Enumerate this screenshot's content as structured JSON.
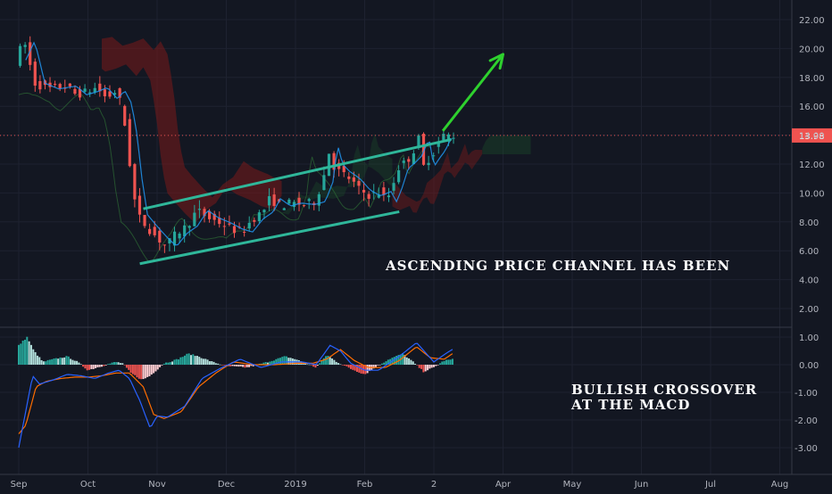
{
  "colors": {
    "background": "#131722",
    "up": "#26a69a",
    "down": "#ef5350",
    "channel": "#2fb79a",
    "arrow": "#2ed12e",
    "macd": "#2962ff",
    "signal": "#ff6d00",
    "price_line": "#ef5350",
    "cloud_bear": "#7a1a1a",
    "cloud_bull": "#1c4d2a"
  },
  "chart_data": [
    {
      "type": "candlestick",
      "title": "",
      "x_labels": [
        "Sep",
        "Oct",
        "Nov",
        "Dec",
        "2019",
        "Feb",
        "2",
        "Apr",
        "May",
        "Jun",
        "Jul",
        "Aug"
      ],
      "y_ticks": [
        "22.00",
        "20.00",
        "18.00",
        "16.00",
        "14.00",
        "12.00",
        "10.00",
        "8.00",
        "6.00",
        "4.00",
        "2.00"
      ],
      "ylim": [
        0.5,
        23.5
      ],
      "last_price": "13.98",
      "price_path": [
        [
          0,
          19.0
        ],
        [
          0.15,
          20.5
        ],
        [
          0.3,
          17.6
        ],
        [
          0.5,
          17.2
        ],
        [
          0.75,
          17.4
        ],
        [
          0.9,
          16.8
        ],
        [
          1.05,
          17.0
        ],
        [
          1.2,
          17.3
        ],
        [
          1.35,
          16.5
        ],
        [
          1.45,
          17.1
        ],
        [
          1.55,
          16.2
        ],
        [
          1.63,
          14.0
        ],
        [
          1.7,
          11.0
        ],
        [
          1.78,
          8.5
        ],
        [
          1.9,
          7.8
        ],
        [
          2.05,
          7.0
        ],
        [
          2.2,
          6.3
        ],
        [
          2.35,
          7.2
        ],
        [
          2.5,
          7.7
        ],
        [
          2.65,
          8.8
        ],
        [
          2.8,
          8.3
        ],
        [
          3.0,
          7.9
        ],
        [
          3.15,
          7.5
        ],
        [
          3.3,
          7.3
        ],
        [
          3.45,
          8.2
        ],
        [
          3.6,
          8.7
        ],
        [
          3.7,
          9.6
        ],
        [
          3.85,
          9.1
        ],
        [
          4.0,
          9.3
        ],
        [
          4.2,
          9.2
        ],
        [
          4.35,
          9.4
        ],
        [
          4.48,
          11.0
        ],
        [
          4.52,
          13.5
        ],
        [
          4.6,
          12.0
        ],
        [
          4.7,
          11.5
        ],
        [
          4.85,
          11.0
        ],
        [
          5.0,
          10.2
        ],
        [
          5.15,
          9.8
        ],
        [
          5.3,
          10.1
        ],
        [
          5.38,
          9.4
        ],
        [
          5.45,
          10.2
        ],
        [
          5.55,
          11.7
        ],
        [
          5.65,
          12.1
        ],
        [
          5.75,
          12.6
        ],
        [
          5.85,
          13.8
        ],
        [
          5.92,
          11.8
        ],
        [
          6.0,
          12.4
        ],
        [
          6.08,
          12.9
        ],
        [
          6.15,
          13.6
        ],
        [
          6.22,
          14.0
        ],
        [
          6.3,
          13.98
        ]
      ],
      "channel_upper": [
        [
          1.8,
          8.9
        ],
        [
          6.25,
          13.7
        ]
      ],
      "channel_lower": [
        [
          1.75,
          5.1
        ],
        [
          5.5,
          8.7
        ]
      ],
      "projection_arrow": [
        [
          6.13,
          14.3
        ],
        [
          7.0,
          19.6
        ]
      ],
      "annotation": "ASCENDING PRICE CHANNEL HAS BEEN"
    },
    {
      "type": "macd",
      "y_ticks": [
        "1.00",
        "0.00",
        "-1.00",
        "-2.00",
        "-3.00"
      ],
      "ylim": [
        -3.5,
        1.1
      ],
      "macd_path": [
        [
          0,
          -3.0
        ],
        [
          0.1,
          -1.7
        ],
        [
          0.2,
          -0.4
        ],
        [
          0.3,
          -0.7
        ],
        [
          0.5,
          -0.55
        ],
        [
          0.7,
          -0.35
        ],
        [
          0.9,
          -0.4
        ],
        [
          1.1,
          -0.5
        ],
        [
          1.3,
          -0.3
        ],
        [
          1.45,
          -0.2
        ],
        [
          1.6,
          -0.5
        ],
        [
          1.75,
          -1.3
        ],
        [
          1.9,
          -2.3
        ],
        [
          2.0,
          -1.85
        ],
        [
          2.15,
          -1.9
        ],
        [
          2.4,
          -1.5
        ],
        [
          2.65,
          -0.5
        ],
        [
          2.9,
          -0.15
        ],
        [
          3.2,
          0.2
        ],
        [
          3.5,
          -0.1
        ],
        [
          3.8,
          0.1
        ],
        [
          4.1,
          0.1
        ],
        [
          4.3,
          0.0
        ],
        [
          4.5,
          0.7
        ],
        [
          4.65,
          0.5
        ],
        [
          4.8,
          0.05
        ],
        [
          5.0,
          -0.2
        ],
        [
          5.2,
          -0.2
        ],
        [
          5.35,
          0.05
        ],
        [
          5.55,
          0.4
        ],
        [
          5.75,
          0.8
        ],
        [
          6.0,
          0.1
        ],
        [
          6.2,
          0.45
        ],
        [
          6.3,
          0.6
        ]
      ],
      "signal_path": [
        [
          0,
          -2.5
        ],
        [
          0.1,
          -2.2
        ],
        [
          0.25,
          -0.8
        ],
        [
          0.4,
          -0.6
        ],
        [
          0.6,
          -0.5
        ],
        [
          0.8,
          -0.45
        ],
        [
          1.0,
          -0.45
        ],
        [
          1.2,
          -0.4
        ],
        [
          1.4,
          -0.3
        ],
        [
          1.6,
          -0.3
        ],
        [
          1.8,
          -0.8
        ],
        [
          1.95,
          -1.8
        ],
        [
          2.1,
          -1.95
        ],
        [
          2.35,
          -1.7
        ],
        [
          2.6,
          -0.8
        ],
        [
          2.85,
          -0.3
        ],
        [
          3.1,
          0.1
        ],
        [
          3.4,
          0.0
        ],
        [
          3.7,
          0.0
        ],
        [
          4.0,
          0.05
        ],
        [
          4.25,
          0.05
        ],
        [
          4.45,
          0.2
        ],
        [
          4.65,
          0.55
        ],
        [
          4.85,
          0.15
        ],
        [
          5.05,
          -0.1
        ],
        [
          5.3,
          -0.1
        ],
        [
          5.5,
          0.15
        ],
        [
          5.75,
          0.65
        ],
        [
          5.95,
          0.25
        ],
        [
          6.15,
          0.2
        ],
        [
          6.3,
          0.45
        ]
      ],
      "histogram_path": [
        [
          0,
          0.7
        ],
        [
          0.12,
          1.0
        ],
        [
          0.22,
          0.5
        ],
        [
          0.35,
          0.1
        ],
        [
          0.5,
          0.2
        ],
        [
          0.7,
          0.3
        ],
        [
          0.85,
          0.1
        ],
        [
          1.0,
          -0.2
        ],
        [
          1.2,
          -0.05
        ],
        [
          1.4,
          0.1
        ],
        [
          1.5,
          0.05
        ],
        [
          1.62,
          -0.3
        ],
        [
          1.78,
          -0.55
        ],
        [
          1.9,
          -0.4
        ],
        [
          2.1,
          0.05
        ],
        [
          2.3,
          0.2
        ],
        [
          2.45,
          0.4
        ],
        [
          2.6,
          0.3
        ],
        [
          2.8,
          0.1
        ],
        [
          3.0,
          -0.05
        ],
        [
          3.3,
          -0.1
        ],
        [
          3.6,
          0.1
        ],
        [
          3.85,
          0.3
        ],
        [
          4.0,
          0.2
        ],
        [
          4.3,
          -0.1
        ],
        [
          4.45,
          0.35
        ],
        [
          4.6,
          0.1
        ],
        [
          4.8,
          -0.15
        ],
        [
          5.0,
          -0.35
        ],
        [
          5.15,
          -0.1
        ],
        [
          5.35,
          0.2
        ],
        [
          5.55,
          0.4
        ],
        [
          5.7,
          0.1
        ],
        [
          5.85,
          -0.25
        ],
        [
          6.0,
          -0.1
        ],
        [
          6.15,
          0.15
        ],
        [
          6.3,
          0.2
        ]
      ],
      "annotation_lines": [
        "BULLISH CROSSOVER",
        "AT THE MACD"
      ]
    }
  ]
}
